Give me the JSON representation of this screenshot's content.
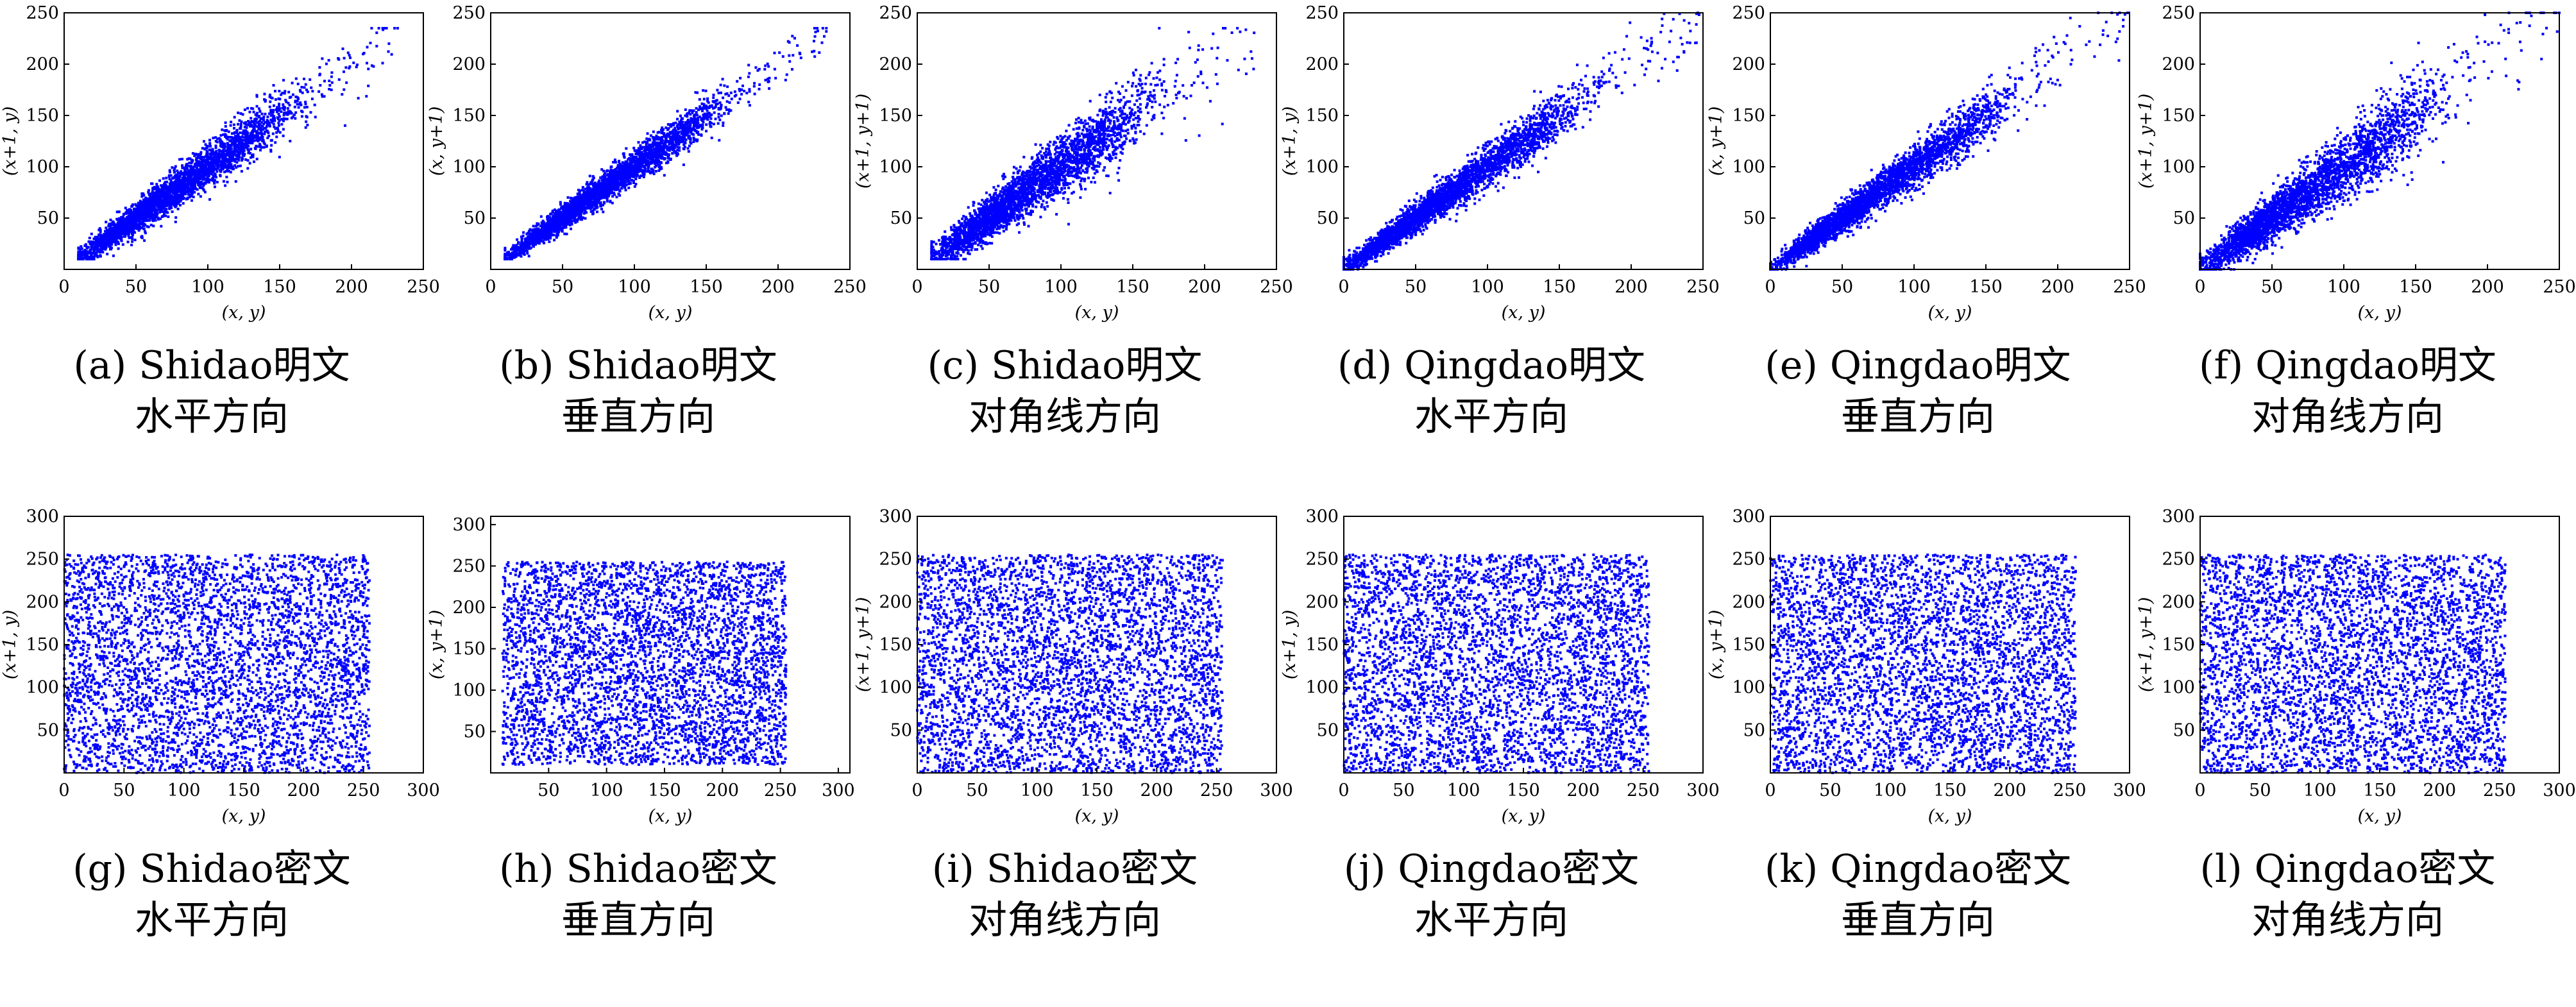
{
  "figure": {
    "marker_color": "#0000ff",
    "axis_color": "#000000"
  },
  "chart_data": [
    {
      "id": "a",
      "type": "scatter",
      "caption_line1": "(a) Shidao明文",
      "caption_line2": "水平方向",
      "xlabel": "(x, y)",
      "ylabel": "(x+1, y)",
      "xlim": [
        0,
        250
      ],
      "ylim": [
        0,
        250
      ],
      "xticks": [
        0,
        50,
        100,
        150,
        200,
        250
      ],
      "yticks": [
        50,
        100,
        150,
        200,
        250
      ],
      "distribution": "correlated",
      "data_range": [
        10,
        235
      ],
      "spread": 9
    },
    {
      "id": "b",
      "type": "scatter",
      "caption_line1": "(b) Shidao明文",
      "caption_line2": "垂直方向",
      "xlabel": "(x, y)",
      "ylabel": "(x, y+1)",
      "xlim": [
        0,
        250
      ],
      "ylim": [
        0,
        250
      ],
      "xticks": [
        0,
        50,
        100,
        150,
        200,
        250
      ],
      "yticks": [
        50,
        100,
        150,
        200,
        250
      ],
      "distribution": "correlated",
      "data_range": [
        10,
        235
      ],
      "spread": 7
    },
    {
      "id": "c",
      "type": "scatter",
      "caption_line1": "(c) Shidao明文",
      "caption_line2": "对角线方向",
      "xlabel": "(x, y)",
      "ylabel": "(x+1, y+1)",
      "xlim": [
        0,
        250
      ],
      "ylim": [
        0,
        250
      ],
      "xticks": [
        0,
        50,
        100,
        150,
        200,
        250
      ],
      "yticks": [
        50,
        100,
        150,
        200,
        250
      ],
      "distribution": "correlated",
      "data_range": [
        10,
        235
      ],
      "spread": 13
    },
    {
      "id": "d",
      "type": "scatter",
      "caption_line1": "(d) Qingdao明文",
      "caption_line2": "水平方向",
      "xlabel": "(x, y)",
      "ylabel": "(x+1, y)",
      "xlim": [
        0,
        250
      ],
      "ylim": [
        0,
        250
      ],
      "xticks": [
        0,
        50,
        100,
        150,
        200,
        250
      ],
      "yticks": [
        50,
        100,
        150,
        200,
        250
      ],
      "distribution": "correlated",
      "data_range": [
        0,
        250
      ],
      "spread": 9
    },
    {
      "id": "e",
      "type": "scatter",
      "caption_line1": "(e) Qingdao明文",
      "caption_line2": "垂直方向",
      "xlabel": "(x, y)",
      "ylabel": "(x, y+1)",
      "xlim": [
        0,
        250
      ],
      "ylim": [
        0,
        250
      ],
      "xticks": [
        0,
        50,
        100,
        150,
        200,
        250
      ],
      "yticks": [
        50,
        100,
        150,
        200,
        250
      ],
      "distribution": "correlated",
      "data_range": [
        0,
        250
      ],
      "spread": 9
    },
    {
      "id": "f",
      "type": "scatter",
      "caption_line1": "(f) Qingdao明文",
      "caption_line2": "对角线方向",
      "xlabel": "(x, y)",
      "ylabel": "(x+1, y+1)",
      "xlim": [
        0,
        250
      ],
      "ylim": [
        0,
        250
      ],
      "xticks": [
        0,
        50,
        100,
        150,
        200,
        250
      ],
      "yticks": [
        50,
        100,
        150,
        200,
        250
      ],
      "distribution": "correlated",
      "data_range": [
        0,
        250
      ],
      "spread": 14
    },
    {
      "id": "g",
      "type": "scatter",
      "caption_line1": "(g) Shidao密文",
      "caption_line2": "水平方向",
      "xlabel": "(x, y)",
      "ylabel": "(x+1, y)",
      "xlim": [
        0,
        300
      ],
      "ylim": [
        0,
        300
      ],
      "xticks": [
        0,
        50,
        100,
        150,
        200,
        250,
        300
      ],
      "yticks": [
        50,
        100,
        150,
        200,
        250,
        300
      ],
      "distribution": "uniform",
      "data_range": [
        0,
        255
      ]
    },
    {
      "id": "h",
      "type": "scatter",
      "caption_line1": "(h) Shidao密文",
      "caption_line2": "垂直方向",
      "xlabel": "(x, y)",
      "ylabel": "(x, y+1)",
      "xlim": [
        0,
        310
      ],
      "ylim": [
        0,
        310
      ],
      "xticks": [
        50,
        100,
        150,
        200,
        250,
        300
      ],
      "yticks": [
        50,
        100,
        150,
        200,
        250,
        300
      ],
      "distribution": "uniform",
      "data_range": [
        10,
        255
      ]
    },
    {
      "id": "i",
      "type": "scatter",
      "caption_line1": "(i) Shidao密文",
      "caption_line2": "对角线方向",
      "xlabel": "(x, y)",
      "ylabel": "(x+1, y+1)",
      "xlim": [
        0,
        300
      ],
      "ylim": [
        0,
        300
      ],
      "xticks": [
        0,
        50,
        100,
        150,
        200,
        250,
        300
      ],
      "yticks": [
        50,
        100,
        150,
        200,
        250,
        300
      ],
      "distribution": "uniform",
      "data_range": [
        0,
        255
      ]
    },
    {
      "id": "j",
      "type": "scatter",
      "caption_line1": "(j) Qingdao密文",
      "caption_line2": "水平方向",
      "xlabel": "(x, y)",
      "ylabel": "(x+1, y)",
      "xlim": [
        0,
        300
      ],
      "ylim": [
        0,
        300
      ],
      "xticks": [
        0,
        50,
        100,
        150,
        200,
        250,
        300
      ],
      "yticks": [
        50,
        100,
        150,
        200,
        250,
        300
      ],
      "distribution": "uniform",
      "data_range": [
        0,
        255
      ]
    },
    {
      "id": "k",
      "type": "scatter",
      "caption_line1": "(k) Qingdao密文",
      "caption_line2": "垂直方向",
      "xlabel": "(x, y)",
      "ylabel": "(x, y+1)",
      "xlim": [
        0,
        300
      ],
      "ylim": [
        0,
        300
      ],
      "xticks": [
        0,
        50,
        100,
        150,
        200,
        250,
        300
      ],
      "yticks": [
        50,
        100,
        150,
        200,
        250,
        300
      ],
      "distribution": "uniform",
      "data_range": [
        0,
        255
      ]
    },
    {
      "id": "l",
      "type": "scatter",
      "caption_line1": "(l) Qingdao密文",
      "caption_line2": "对角线方向",
      "xlabel": "(x, y)",
      "ylabel": "(x+1, y+1)",
      "xlim": [
        0,
        300
      ],
      "ylim": [
        0,
        300
      ],
      "xticks": [
        0,
        50,
        100,
        150,
        200,
        250,
        300
      ],
      "yticks": [
        50,
        100,
        150,
        200,
        250,
        300
      ],
      "distribution": "uniform",
      "data_range": [
        0,
        255
      ]
    }
  ]
}
